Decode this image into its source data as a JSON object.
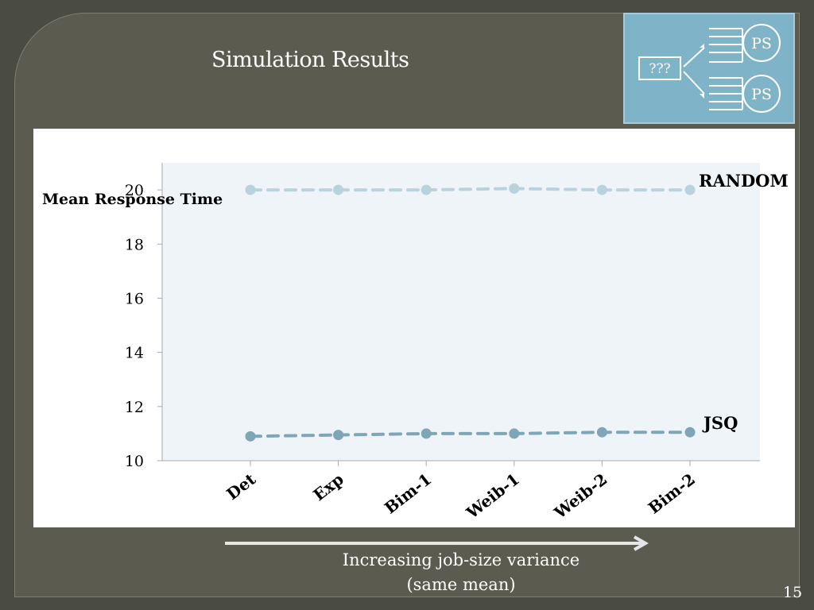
{
  "slide": {
    "title": "Simulation Results",
    "page_number": "15",
    "caption_line1": "Increasing job-size variance",
    "caption_line2": "(same mean)"
  },
  "diagram": {
    "dispatcher_label": "???",
    "server_labels": [
      "PS",
      "PS"
    ]
  },
  "chart_data": {
    "type": "line",
    "ylabel": "Mean Response Time",
    "xlabel": "",
    "categories": [
      "Det",
      "Exp",
      "Bim-1",
      "Weib-1",
      "Weib-2",
      "Bim-2"
    ],
    "ylim": [
      10,
      21
    ],
    "yticks": [
      10,
      12,
      14,
      16,
      18,
      20
    ],
    "grid": false,
    "series": [
      {
        "name": "RANDOM",
        "values": [
          20,
          20,
          20,
          20.05,
          20,
          20
        ],
        "color": "#b9d3dc"
      },
      {
        "name": "JSQ",
        "values": [
          10.9,
          10.95,
          11,
          11,
          11.05,
          11.05
        ],
        "color": "#7fa6b6"
      }
    ]
  },
  "colors": {
    "slide_background": "#5b5c4f",
    "plot_area": "#eef4f8",
    "diagram_fill": "#7fb3c7"
  }
}
